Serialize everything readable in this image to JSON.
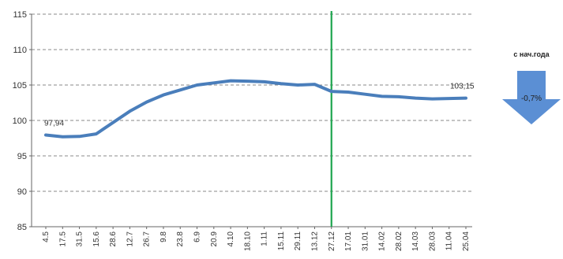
{
  "chart_data": {
    "type": "line",
    "title": "",
    "xlabel": "",
    "ylabel": "",
    "ylim": [
      85,
      115
    ],
    "yticks": [
      85,
      90,
      95,
      100,
      105,
      110,
      115
    ],
    "grid": true,
    "legend": "none",
    "categories": [
      "4.5",
      "17.5",
      "31.5",
      "15.6",
      "28.6",
      "12.7",
      "26.7",
      "9.8",
      "23.8",
      "6.9",
      "20.9",
      "4.10",
      "18.10",
      "1.11",
      "15.11",
      "29.11",
      "13.12",
      "27.12",
      "17.01",
      "31.01",
      "14.02",
      "28.02",
      "14.03",
      "28.03",
      "11.04",
      "25.04"
    ],
    "series": [
      {
        "color": "#4a7ebb",
        "values": [
          97.94,
          97.7,
          97.75,
          98.1,
          99.7,
          101.3,
          102.6,
          103.6,
          104.3,
          105.0,
          105.3,
          105.6,
          105.55,
          105.45,
          105.2,
          105.0,
          105.1,
          104.1,
          104.0,
          103.7,
          103.4,
          103.35,
          103.15,
          103.05,
          103.1,
          103.15
        ],
        "start_label": "97,94",
        "end_label": "103,15"
      }
    ],
    "marker": {
      "category": "27.12",
      "color": "#1fa650"
    }
  },
  "ytd_indicator": {
    "title": "с нач.года",
    "value_text": "-0,7%",
    "color": "#5b8fd4",
    "icon": "down-arrow-icon"
  }
}
